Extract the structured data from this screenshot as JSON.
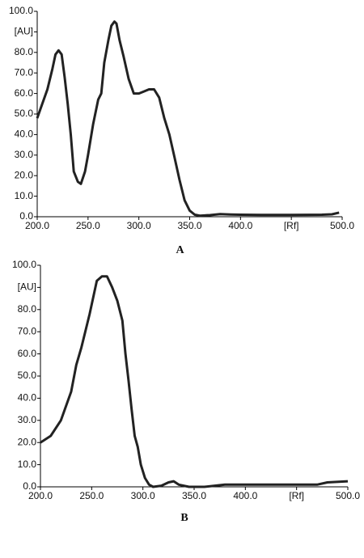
{
  "chart_data": [
    {
      "type": "line",
      "caption": "A",
      "x": [
        200,
        205,
        210,
        215,
        218,
        221,
        224,
        227,
        230,
        233,
        236,
        240,
        243,
        247,
        250,
        255,
        260,
        263,
        266,
        270,
        273,
        276,
        278,
        281,
        285,
        290,
        295,
        300,
        305,
        310,
        315,
        320,
        325,
        330,
        335,
        340,
        345,
        350,
        355,
        360,
        370,
        380,
        390,
        400,
        420,
        450,
        480,
        490,
        497
      ],
      "series": [
        {
          "color": "#222222",
          "values": [
            48,
            55,
            62,
            72,
            79,
            81,
            79,
            68,
            55,
            40,
            22,
            17,
            16,
            22,
            30,
            45,
            57,
            60,
            75,
            86,
            93,
            95,
            94,
            86,
            78,
            67,
            60,
            60,
            61,
            62,
            62,
            58,
            48,
            40,
            29,
            18,
            8,
            3,
            1,
            0.5,
            0.8,
            1.3,
            1.1,
            1,
            0.9,
            0.9,
            1,
            1.2,
            2
          ]
        }
      ],
      "xlim": [
        200,
        500
      ],
      "xticks": [
        {
          "value": 200,
          "label": "200.0"
        },
        {
          "value": 250,
          "label": "250.0"
        },
        {
          "value": 300,
          "label": "300.0"
        },
        {
          "value": 350,
          "label": "350.0"
        },
        {
          "value": 400,
          "label": "400.0"
        },
        {
          "value": 450,
          "label": "[Rf]"
        },
        {
          "value": 500,
          "label": "500.0"
        }
      ],
      "ylim": [
        0,
        100
      ],
      "yticks": [
        {
          "value": 0,
          "label": "0.0"
        },
        {
          "value": 10,
          "label": "10.0"
        },
        {
          "value": 20,
          "label": "20.0"
        },
        {
          "value": 30,
          "label": "30.0"
        },
        {
          "value": 40,
          "label": "40.0"
        },
        {
          "value": 50,
          "label": "50.0"
        },
        {
          "value": 60,
          "label": "60.0"
        },
        {
          "value": 70,
          "label": "70.0"
        },
        {
          "value": 80,
          "label": "80.0"
        },
        {
          "value": 90,
          "label": "[AU]"
        },
        {
          "value": 100,
          "label": "100.0"
        }
      ]
    },
    {
      "type": "line",
      "caption": "B",
      "x": [
        200,
        210,
        220,
        230,
        235,
        240,
        248,
        255,
        260,
        265,
        270,
        275,
        280,
        283,
        286,
        289,
        292,
        295,
        298,
        302,
        306,
        310,
        318,
        325,
        330,
        335,
        345,
        360,
        380,
        400,
        420,
        450,
        470,
        480,
        500
      ],
      "series": [
        {
          "color": "#222222",
          "values": [
            20,
            23,
            30,
            43,
            55,
            63,
            78,
            93,
            95,
            95,
            90,
            84,
            75,
            60,
            48,
            35,
            23,
            18,
            10,
            4,
            1,
            0,
            0.5,
            2,
            2.5,
            1,
            0,
            0,
            1,
            1,
            1,
            1,
            1,
            2,
            2.5
          ]
        }
      ],
      "xlim": [
        200,
        500
      ],
      "xticks": [
        {
          "value": 200,
          "label": "200.0"
        },
        {
          "value": 250,
          "label": "250.0"
        },
        {
          "value": 300,
          "label": "300.0"
        },
        {
          "value": 350,
          "label": "350.0"
        },
        {
          "value": 400,
          "label": "400.0"
        },
        {
          "value": 450,
          "label": "[Rf]"
        },
        {
          "value": 500,
          "label": "500.0"
        }
      ],
      "ylim": [
        0,
        100
      ],
      "yticks": [
        {
          "value": 0,
          "label": "0.0"
        },
        {
          "value": 10,
          "label": "10.0"
        },
        {
          "value": 20,
          "label": "20.0"
        },
        {
          "value": 30,
          "label": "30.0"
        },
        {
          "value": 40,
          "label": "40.0"
        },
        {
          "value": 50,
          "label": "50.0"
        },
        {
          "value": 60,
          "label": "60.0"
        },
        {
          "value": 70,
          "label": "70.0"
        },
        {
          "value": 80,
          "label": "80.0"
        },
        {
          "value": 90,
          "label": "[AU]"
        },
        {
          "value": 100,
          "label": "100.0"
        }
      ]
    }
  ]
}
